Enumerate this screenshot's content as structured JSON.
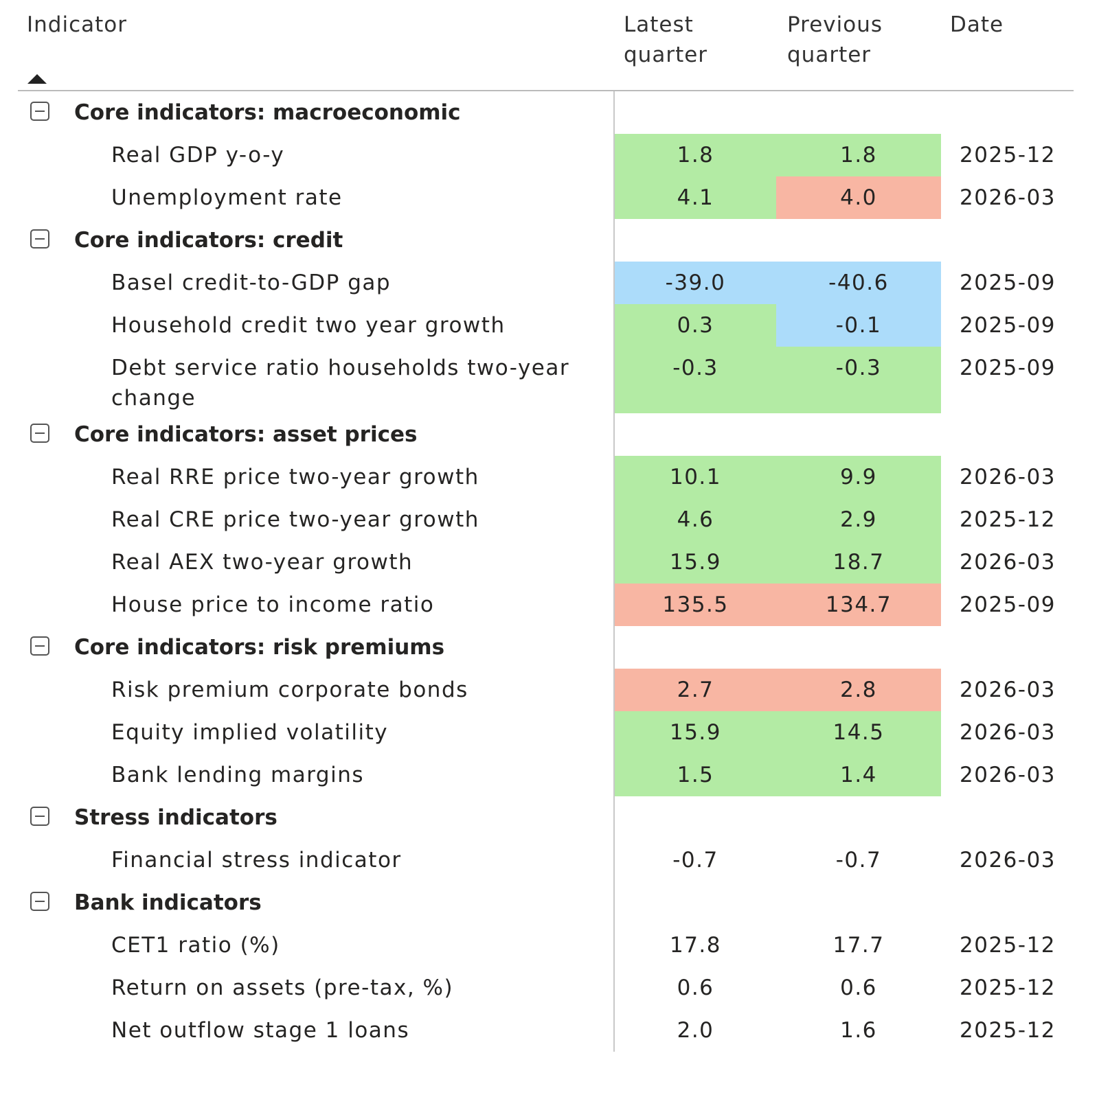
{
  "header": {
    "columns": [
      "Indicator",
      "Latest quarter",
      "Previous quarter",
      "Date"
    ]
  },
  "groups": [
    {
      "title": "Core indicators: macroeconomic",
      "rows": [
        {
          "indicator": "Real GDP y-o-y",
          "latest": "1.8",
          "previous": "1.8",
          "date": "2025-12",
          "latest_color": "#b3eba4",
          "previous_color": "#b3eba4"
        },
        {
          "indicator": "Unemployment rate",
          "latest": "4.1",
          "previous": "4.0",
          "date": "2026-03",
          "latest_color": "#b3eba4",
          "previous_color": "#f8b6a3"
        }
      ]
    },
    {
      "title": "Core indicators: credit",
      "rows": [
        {
          "indicator": "Basel credit-to-GDP gap",
          "latest": "-39.0",
          "previous": "-40.6",
          "date": "2025-09",
          "latest_color": "#acdcfa",
          "previous_color": "#acdcfa"
        },
        {
          "indicator": "Household credit two year growth",
          "latest": "0.3",
          "previous": "-0.1",
          "date": "2025-09",
          "latest_color": "#b3eba4",
          "previous_color": "#acdcfa"
        },
        {
          "indicator": "Debt service ratio households two-year change",
          "latest": "-0.3",
          "previous": "-0.3",
          "date": "2025-09",
          "latest_color": "#b3eba4",
          "previous_color": "#b3eba4"
        }
      ]
    },
    {
      "title": "Core indicators: asset prices",
      "rows": [
        {
          "indicator": "Real RRE price two-year growth",
          "latest": "10.1",
          "previous": "9.9",
          "date": "2026-03",
          "latest_color": "#b3eba4",
          "previous_color": "#b3eba4"
        },
        {
          "indicator": "Real CRE price two-year growth",
          "latest": "4.6",
          "previous": "2.9",
          "date": "2025-12",
          "latest_color": "#b3eba4",
          "previous_color": "#b3eba4"
        },
        {
          "indicator": "Real AEX two-year growth",
          "latest": "15.9",
          "previous": "18.7",
          "date": "2026-03",
          "latest_color": "#b3eba4",
          "previous_color": "#b3eba4"
        },
        {
          "indicator": "House price to income ratio",
          "latest": "135.5",
          "previous": "134.7",
          "date": "2025-09",
          "latest_color": "#f8b6a3",
          "previous_color": "#f8b6a3"
        }
      ]
    },
    {
      "title": "Core indicators: risk premiums",
      "rows": [
        {
          "indicator": "Risk premium corporate bonds",
          "latest": "2.7",
          "previous": "2.8",
          "date": "2026-03",
          "latest_color": "#f8b6a3",
          "previous_color": "#f8b6a3"
        },
        {
          "indicator": "Equity implied volatility",
          "latest": "15.9",
          "previous": "14.5",
          "date": "2026-03",
          "latest_color": "#b3eba4",
          "previous_color": "#b3eba4"
        },
        {
          "indicator": "Bank lending margins",
          "latest": "1.5",
          "previous": "1.4",
          "date": "2026-03",
          "latest_color": "#b3eba4",
          "previous_color": "#b3eba4"
        }
      ]
    },
    {
      "title": "Stress indicators",
      "rows": [
        {
          "indicator": "Financial stress indicator",
          "latest": "-0.7",
          "previous": "-0.7",
          "date": "2026-03",
          "latest_color": null,
          "previous_color": null
        }
      ]
    },
    {
      "title": "Bank indicators",
      "rows": [
        {
          "indicator": "CET1 ratio (%)",
          "latest": "17.8",
          "previous": "17.7",
          "date": "2025-12",
          "latest_color": null,
          "previous_color": null
        },
        {
          "indicator": "Return on assets (pre-tax, %)",
          "latest": "0.6",
          "previous": "0.6",
          "date": "2025-12",
          "latest_color": null,
          "previous_color": null
        },
        {
          "indicator": "Net outflow stage 1 loans",
          "latest": "2.0",
          "previous": "1.6",
          "date": "2025-12",
          "latest_color": null,
          "previous_color": null
        }
      ]
    }
  ]
}
